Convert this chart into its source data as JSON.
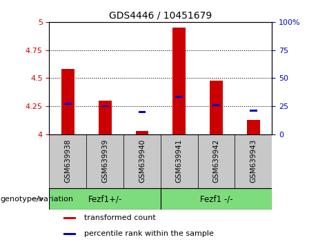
{
  "title": "GDS4446 / 10451679",
  "categories": [
    "GSM639938",
    "GSM639939",
    "GSM639940",
    "GSM639941",
    "GSM639942",
    "GSM639943"
  ],
  "red_values": [
    4.58,
    4.3,
    4.03,
    4.95,
    4.48,
    4.13
  ],
  "blue_values": [
    4.27,
    4.25,
    4.2,
    4.33,
    4.26,
    4.21
  ],
  "ylim_left": [
    4.0,
    5.0
  ],
  "ylim_right": [
    0,
    100
  ],
  "yticks_left": [
    4.0,
    4.25,
    4.5,
    4.75,
    5.0
  ],
  "yticks_right": [
    0,
    25,
    50,
    75,
    100
  ],
  "ytick_labels_left": [
    "4",
    "4.25",
    "4.5",
    "4.75",
    "5"
  ],
  "ytick_labels_right": [
    "0",
    "25",
    "50",
    "75",
    "100%"
  ],
  "groups": [
    {
      "label": "Fezf1+/-",
      "indices": [
        0,
        1,
        2
      ],
      "color": "#7ddd7d"
    },
    {
      "label": "Fezf1 -/-",
      "indices": [
        3,
        4,
        5
      ],
      "color": "#7ddd7d"
    }
  ],
  "group_label_prefix": "genotype/variation",
  "bar_color": "#cc0000",
  "blue_color": "#0000cc",
  "bar_width": 0.35,
  "grid_color": "black",
  "grid_style": "dotted",
  "tick_color_left": "#cc0000",
  "tick_color_right": "#0000cc",
  "legend_items": [
    {
      "label": "transformed count",
      "color": "#cc0000"
    },
    {
      "label": "percentile rank within the sample",
      "color": "#0000cc"
    }
  ],
  "base_value": 4.0,
  "label_area_color": "#c8c8c8",
  "fig_bg": "#ffffff"
}
